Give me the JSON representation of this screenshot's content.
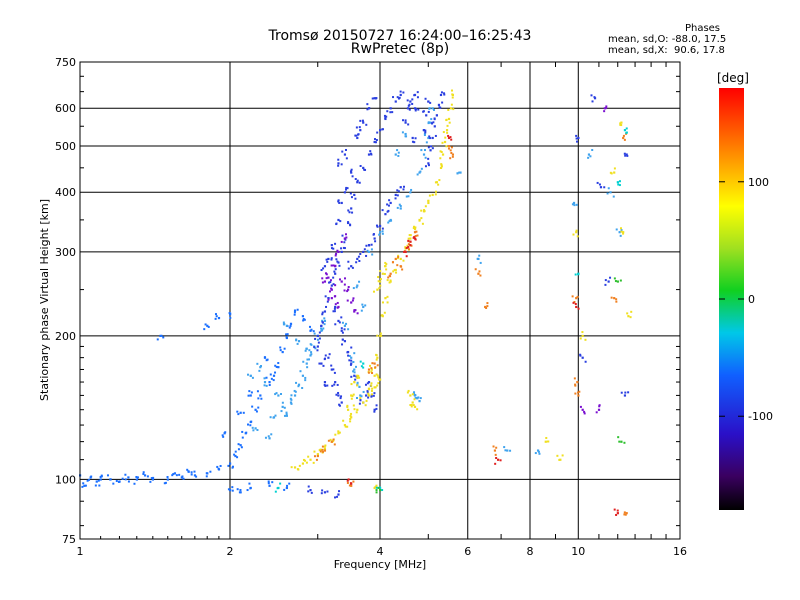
{
  "header": {
    "title_line1": "Tromsø 20150727 16:24:00–16:25:43",
    "title_line2": "RwPretec (8p)"
  },
  "stats": {
    "heading": "Phases",
    "line_o": "mean, sd,O: -88.0, 17.5",
    "line_x": "mean, sd,X:  90.6, 17.8"
  },
  "colorbar": {
    "unit_label": "[deg]",
    "ticks": [
      "100",
      "0",
      "-100"
    ],
    "tick_values": [
      100,
      0,
      -100
    ],
    "range": [
      -180,
      180
    ]
  },
  "chart_data": {
    "type": "scatter",
    "xlabel": "Frequency [MHz]",
    "ylabel": "Stationary phase Virtual Height [km]",
    "x_scale": "log",
    "y_scale": "log",
    "xlim": [
      1,
      16
    ],
    "ylim": [
      75,
      750
    ],
    "x_ticks": [
      1,
      2,
      4,
      6,
      8,
      10,
      16
    ],
    "x_tick_labels": [
      "1",
      "2",
      "4",
      "6",
      "8",
      "10",
      "16"
    ],
    "y_ticks": [
      75,
      100,
      200,
      300,
      400,
      500,
      600,
      750
    ],
    "y_tick_labels": [
      "75",
      "100",
      "200",
      "300",
      "400",
      "500",
      "600",
      "750"
    ],
    "grid": true,
    "color_encoding": "phase [deg]",
    "series": [
      {
        "color": "#1a6fff",
        "points": [
          [
            1.0,
            102
          ],
          [
            1.05,
            101
          ],
          [
            1.1,
            100
          ],
          [
            1.15,
            100
          ],
          [
            1.2,
            99
          ],
          [
            1.3,
            100
          ],
          [
            1.4,
            100
          ],
          [
            1.5,
            100
          ],
          [
            1.6,
            101
          ],
          [
            1.7,
            102
          ],
          [
            1.8,
            103
          ],
          [
            1.9,
            105
          ],
          [
            2.0,
            108
          ],
          [
            2.05,
            112
          ],
          [
            2.1,
            118
          ],
          [
            2.15,
            125
          ],
          [
            2.2,
            132
          ],
          [
            2.25,
            140
          ],
          [
            2.3,
            150
          ],
          [
            2.4,
            160
          ],
          [
            2.5,
            172
          ],
          [
            2.55,
            185
          ],
          [
            2.6,
            198
          ],
          [
            2.65,
            212
          ],
          [
            1.8,
            210
          ],
          [
            1.9,
            218
          ],
          [
            2.0,
            222
          ],
          [
            1.45,
            200
          ],
          [
            2.7,
            226
          ],
          [
            2.8,
            220
          ],
          [
            2.9,
            205
          ],
          [
            2.35,
            180
          ],
          [
            2.45,
            165
          ],
          [
            2.2,
            150
          ],
          [
            2.1,
            138
          ],
          [
            1.95,
            125
          ],
          [
            2.0,
            95
          ],
          [
            2.1,
            94
          ],
          [
            2.2,
            96
          ],
          [
            2.4,
            97
          ],
          [
            2.6,
            96
          ],
          [
            1.02,
            97
          ],
          [
            1.08,
            99
          ],
          [
            1.25,
            101
          ],
          [
            1.35,
            102
          ],
          [
            1.55,
            103
          ],
          [
            1.65,
            104
          ]
        ]
      },
      {
        "color": "#3fa3ee",
        "points": [
          [
            2.2,
            165
          ],
          [
            2.3,
            172
          ],
          [
            2.35,
            160
          ],
          [
            2.5,
            150
          ],
          [
            2.55,
            142
          ],
          [
            2.6,
            136
          ],
          [
            2.65,
            145
          ],
          [
            2.7,
            150
          ],
          [
            2.75,
            158
          ],
          [
            2.8,
            165
          ],
          [
            2.85,
            175
          ],
          [
            2.9,
            182
          ],
          [
            2.95,
            190
          ],
          [
            3.0,
            200
          ],
          [
            2.6,
            210
          ],
          [
            2.75,
            195
          ],
          [
            2.85,
            188
          ],
          [
            3.05,
            205
          ],
          [
            3.1,
            215
          ],
          [
            2.25,
            128
          ],
          [
            2.4,
            122
          ],
          [
            2.45,
            135
          ],
          [
            3.6,
            255
          ],
          [
            3.8,
            300
          ],
          [
            4.0,
            330
          ],
          [
            4.2,
            350
          ],
          [
            4.4,
            370
          ],
          [
            4.6,
            400
          ],
          [
            4.8,
            440
          ],
          [
            4.9,
            480
          ],
          [
            5.0,
            520
          ],
          [
            5.05,
            560
          ],
          [
            5.1,
            600
          ],
          [
            4.3,
            480
          ],
          [
            4.5,
            530
          ],
          [
            3.4,
            210
          ],
          [
            3.7,
            230
          ],
          [
            3.5,
            180
          ],
          [
            3.55,
            170
          ],
          [
            3.6,
            158
          ],
          [
            3.65,
            150
          ],
          [
            4.7,
            150
          ],
          [
            4.75,
            148
          ],
          [
            4.8,
            146
          ],
          [
            5.8,
            440
          ],
          [
            6.3,
            290
          ],
          [
            7.2,
            115
          ],
          [
            8.3,
            115
          ],
          [
            9.8,
            380
          ],
          [
            10.5,
            480
          ],
          [
            11.6,
            400
          ],
          [
            12.1,
            330
          ]
        ]
      },
      {
        "color": "#2a3fe0",
        "points": [
          [
            3.0,
            200
          ],
          [
            3.05,
            210
          ],
          [
            3.1,
            225
          ],
          [
            3.15,
            240
          ],
          [
            3.2,
            255
          ],
          [
            3.25,
            270
          ],
          [
            3.3,
            285
          ],
          [
            3.35,
            300
          ],
          [
            3.4,
            320
          ],
          [
            3.45,
            345
          ],
          [
            3.5,
            370
          ],
          [
            3.55,
            395
          ],
          [
            3.6,
            420
          ],
          [
            3.7,
            450
          ],
          [
            3.8,
            480
          ],
          [
            3.9,
            510
          ],
          [
            4.0,
            540
          ],
          [
            4.1,
            570
          ],
          [
            4.2,
            600
          ],
          [
            4.3,
            620
          ],
          [
            3.7,
            560
          ],
          [
            3.8,
            600
          ],
          [
            3.9,
            630
          ],
          [
            3.6,
            520
          ],
          [
            3.65,
            540
          ],
          [
            3.25,
            230
          ],
          [
            3.3,
            215
          ],
          [
            3.35,
            205
          ],
          [
            3.4,
            195
          ],
          [
            3.45,
            185
          ],
          [
            3.5,
            175
          ],
          [
            3.55,
            165
          ],
          [
            3.15,
            180
          ],
          [
            3.2,
            170
          ],
          [
            3.25,
            160
          ],
          [
            3.3,
            150
          ],
          [
            3.35,
            145
          ],
          [
            3.1,
            160
          ],
          [
            3.05,
            175
          ],
          [
            3.0,
            190
          ],
          [
            3.3,
            350
          ],
          [
            3.35,
            380
          ],
          [
            3.4,
            400
          ],
          [
            3.2,
            310
          ],
          [
            3.15,
            290
          ],
          [
            3.1,
            280
          ],
          [
            3.5,
            280
          ],
          [
            3.6,
            290
          ],
          [
            3.7,
            300
          ],
          [
            3.8,
            310
          ],
          [
            3.9,
            320
          ],
          [
            4.0,
            340
          ],
          [
            4.1,
            360
          ],
          [
            4.2,
            380
          ],
          [
            4.3,
            395
          ],
          [
            4.4,
            410
          ],
          [
            4.5,
            560
          ],
          [
            4.55,
            600
          ],
          [
            4.6,
            620
          ],
          [
            4.7,
            640
          ],
          [
            4.4,
            640
          ],
          [
            5.0,
            460
          ],
          [
            5.05,
            490
          ],
          [
            5.1,
            520
          ],
          [
            5.15,
            550
          ],
          [
            5.2,
            580
          ],
          [
            5.25,
            610
          ],
          [
            5.3,
            640
          ],
          [
            4.9,
            540
          ],
          [
            4.95,
            580
          ],
          [
            5.0,
            620
          ],
          [
            3.4,
            480
          ],
          [
            3.5,
            440
          ],
          [
            3.3,
            460
          ],
          [
            3.9,
            140
          ],
          [
            3.85,
            150
          ],
          [
            3.8,
            160
          ],
          [
            3.75,
            150
          ],
          [
            3.7,
            145
          ],
          [
            4.7,
            600
          ],
          [
            4.65,
            520
          ],
          [
            2.9,
            95
          ],
          [
            3.1,
            94
          ],
          [
            3.3,
            93
          ],
          [
            10.0,
            520
          ],
          [
            10.8,
            630
          ],
          [
            11.1,
            410
          ],
          [
            12.5,
            480
          ],
          [
            11.5,
            260
          ],
          [
            12.4,
            150
          ],
          [
            10.2,
            180
          ]
        ]
      },
      {
        "color": "#f0e020",
        "points": [
          [
            2.7,
            106
          ],
          [
            2.8,
            108
          ],
          [
            2.9,
            110
          ],
          [
            3.0,
            113
          ],
          [
            3.1,
            116
          ],
          [
            3.2,
            120
          ],
          [
            3.3,
            125
          ],
          [
            3.4,
            130
          ],
          [
            3.5,
            135
          ],
          [
            3.6,
            140
          ],
          [
            3.7,
            145
          ],
          [
            3.8,
            150
          ],
          [
            3.9,
            156
          ],
          [
            4.0,
            162
          ],
          [
            3.95,
            180
          ],
          [
            4.0,
            200
          ],
          [
            4.05,
            220
          ],
          [
            4.1,
            240
          ],
          [
            4.2,
            260
          ],
          [
            4.3,
            275
          ],
          [
            4.4,
            290
          ],
          [
            4.5,
            305
          ],
          [
            4.6,
            320
          ],
          [
            4.7,
            335
          ],
          [
            4.8,
            350
          ],
          [
            4.9,
            365
          ],
          [
            5.0,
            380
          ],
          [
            5.1,
            395
          ],
          [
            5.2,
            420
          ],
          [
            5.3,
            450
          ],
          [
            5.35,
            480
          ],
          [
            5.4,
            510
          ],
          [
            5.45,
            540
          ],
          [
            5.5,
            570
          ],
          [
            5.55,
            600
          ],
          [
            5.6,
            640
          ],
          [
            4.05,
            270
          ],
          [
            4.1,
            280
          ],
          [
            4.0,
            260
          ],
          [
            3.95,
            250
          ],
          [
            3.85,
            170
          ],
          [
            3.9,
            165
          ],
          [
            3.8,
            155
          ],
          [
            3.45,
            140
          ],
          [
            3.5,
            150
          ],
          [
            3.55,
            160
          ],
          [
            3.6,
            165
          ],
          [
            4.6,
            150
          ],
          [
            4.65,
            145
          ],
          [
            4.7,
            142
          ],
          [
            3.9,
            96
          ],
          [
            9.9,
            330
          ],
          [
            10.2,
            200
          ],
          [
            11.8,
            440
          ],
          [
            12.3,
            330
          ],
          [
            12.6,
            220
          ],
          [
            12.2,
            560
          ],
          [
            8.6,
            120
          ],
          [
            9.2,
            110
          ]
        ]
      },
      {
        "color": "#f08020",
        "points": [
          [
            4.4,
            280
          ],
          [
            4.5,
            300
          ],
          [
            4.6,
            315
          ],
          [
            4.7,
            330
          ],
          [
            4.3,
            290
          ],
          [
            4.2,
            270
          ],
          [
            3.2,
            120
          ],
          [
            3.1,
            115
          ],
          [
            3.0,
            112
          ],
          [
            5.5,
            500
          ],
          [
            5.6,
            480
          ],
          [
            6.8,
            115
          ],
          [
            6.5,
            230
          ],
          [
            9.9,
            240
          ],
          [
            9.95,
            160
          ],
          [
            10.0,
            150
          ],
          [
            11.8,
            240
          ],
          [
            12.3,
            520
          ],
          [
            12.5,
            85
          ],
          [
            3.8,
            170
          ],
          [
            3.9,
            175
          ],
          [
            3.5,
            97
          ],
          [
            6.3,
            270
          ]
        ]
      },
      {
        "color": "#e02020",
        "points": [
          [
            4.6,
            310
          ],
          [
            4.7,
            320
          ],
          [
            4.5,
            300
          ],
          [
            5.5,
            520
          ],
          [
            6.9,
            110
          ],
          [
            9.9,
            230
          ],
          [
            3.5,
            98
          ],
          [
            12.0,
            85
          ]
        ]
      },
      {
        "color": "#00d0d0",
        "points": [
          [
            3.7,
            175
          ],
          [
            10.0,
            270
          ],
          [
            12.0,
            420
          ],
          [
            12.4,
            540
          ],
          [
            2.5,
            96
          ],
          [
            4.0,
            96
          ]
        ]
      },
      {
        "color": "#30c030",
        "points": [
          [
            4.0,
            95
          ],
          [
            12.0,
            260
          ],
          [
            12.2,
            120
          ]
        ]
      },
      {
        "color": "#7a10d0",
        "points": [
          [
            3.1,
            260
          ],
          [
            3.2,
            240
          ],
          [
            3.25,
            280
          ],
          [
            3.3,
            300
          ],
          [
            3.4,
            320
          ],
          [
            3.35,
            260
          ],
          [
            3.3,
            230
          ],
          [
            3.2,
            250
          ],
          [
            3.15,
            265
          ],
          [
            3.45,
            250
          ],
          [
            3.5,
            235
          ],
          [
            3.55,
            225
          ],
          [
            10.2,
            140
          ],
          [
            11.0,
            140
          ],
          [
            11.3,
            600
          ]
        ]
      }
    ]
  }
}
